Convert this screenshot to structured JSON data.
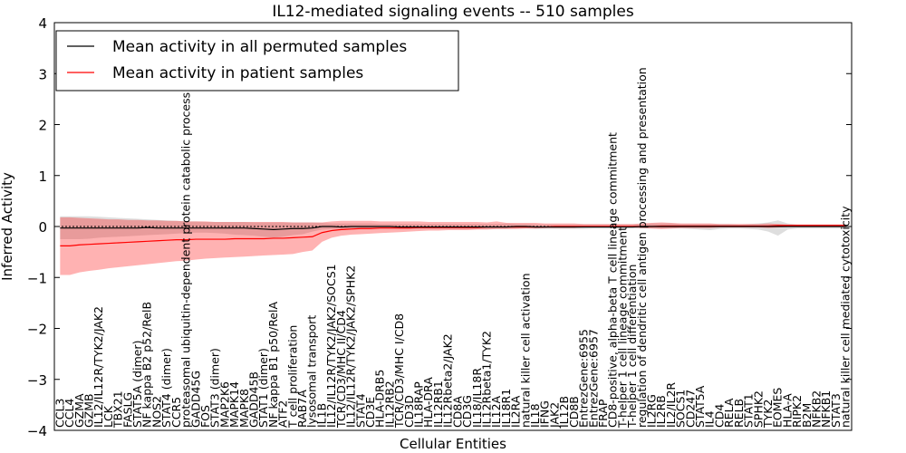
{
  "chart_data": {
    "type": "line",
    "title": "IL12-mediated signaling events -- 510 samples",
    "xlabel": "Cellular Entities",
    "ylabel": "Inferred Activity",
    "ylim": [
      -4,
      4
    ],
    "yticks": [
      -4,
      -3,
      -2,
      -1,
      0,
      1,
      2,
      3,
      4
    ],
    "grid": false,
    "legend_position": "top-left",
    "categories": [
      "CCL3",
      "CCL4",
      "GZMA",
      "GZMB",
      "IL12/IL12R/TYK2/JAK2",
      "LCK",
      "TBX21",
      "FASLG",
      "STAT5A (dimer)",
      "NF kappa B2 p52/RelB",
      "NOS2",
      "STAT4 (dimer)",
      "CCR5",
      "proteasomal ubiquitin-dependent protein catabolic process",
      "GADD45G",
      "FOS",
      "STAT3 (dimer)",
      "MAP2K6",
      "MAPK14",
      "MAPK8",
      "GADD45B",
      "STAT1 (dimer)",
      "NF kappa B1 p50/RelA",
      "ATF2",
      "T cell proliferation",
      "RAB7A",
      "lysosomal transport",
      "IL1B",
      "IL12/IL12R/TYK2/JAK2/SOCS1",
      "TCR/CD3/MHC II/CD4",
      "IL12/IL12R/TYK2/JAK2/SPHK2",
      "STAT4",
      "CD3E",
      "HLA-DRB5",
      "IL12RB2",
      "TCR/CD3/MHC I/CD8",
      "CD3D",
      "IL18RAP",
      "HLA-DRA",
      "IL12RB1",
      "IL12Rbeta2/JAK2",
      "CD8A",
      "CD3G",
      "IL18/IL18R",
      "IL12Rbeta1/TYK2",
      "IL12A",
      "IL18R1",
      "IL2RA",
      "natural killer cell activation",
      "IL18",
      "IFNG",
      "JAK2",
      "IL12B",
      "CD8B",
      "EntrezGene:6955",
      "EntrezGene:6957",
      "FRAP",
      "CD8-positive, alpha-beta T cell lineage commitment",
      "T-helper 1 cell lineage commitment",
      "T-helper 1 cell differentiation",
      "regulation of dendritic cell antigen processing and presentation",
      "IL2RG",
      "IL2RB",
      "IL2/IL2R",
      "SOCS1",
      "CD247",
      "STAT5A",
      "IL4",
      "CD4",
      "RELA",
      "RELB",
      "STAT1",
      "SPHK2",
      "TYK2",
      "EOMES",
      "HLA-A",
      "RIPK2",
      "B2M",
      "NFKB2",
      "NFKB1",
      "STAT3",
      "natural killer cell mediated cytotoxicity"
    ],
    "series": [
      {
        "name": "Mean activity in all permuted samples",
        "color": "#000000",
        "values": [
          -0.03,
          -0.03,
          -0.03,
          -0.03,
          -0.03,
          -0.03,
          -0.03,
          -0.03,
          -0.03,
          -0.02,
          -0.03,
          -0.03,
          -0.03,
          -0.03,
          -0.03,
          -0.03,
          -0.03,
          -0.03,
          -0.03,
          -0.03,
          -0.04,
          -0.05,
          -0.06,
          -0.05,
          -0.04,
          -0.04,
          -0.03,
          0.0,
          0.0,
          -0.01,
          0.0,
          0.0,
          0.0,
          0.0,
          0.0,
          -0.01,
          -0.01,
          -0.01,
          -0.01,
          -0.01,
          -0.01,
          -0.01,
          -0.01,
          -0.01,
          -0.01,
          -0.01,
          -0.01,
          0.0,
          0.0,
          -0.01,
          -0.01,
          -0.01,
          -0.01,
          -0.01,
          -0.01,
          -0.01,
          -0.01,
          -0.01,
          -0.01,
          -0.01,
          0.0,
          0.0,
          0.0,
          0.0,
          0.0,
          0.0,
          0.0,
          0.0,
          0.0,
          0.0,
          0.0,
          0.0,
          0.0,
          0.0,
          0.0,
          0.0,
          0.0,
          0.0,
          0.0,
          0.0,
          0.0,
          0.0
        ],
        "lower": [
          -0.25,
          -0.25,
          -0.25,
          -0.24,
          -0.22,
          -0.21,
          -0.2,
          -0.19,
          -0.18,
          -0.17,
          -0.16,
          -0.15,
          -0.14,
          -0.13,
          -0.12,
          -0.12,
          -0.13,
          -0.14,
          -0.16,
          -0.17,
          -0.18,
          -0.2,
          -0.22,
          -0.2,
          -0.17,
          -0.15,
          -0.1,
          -0.06,
          -0.05,
          -0.05,
          -0.05,
          -0.05,
          -0.04,
          -0.04,
          -0.04,
          -0.05,
          -0.05,
          -0.05,
          -0.05,
          -0.05,
          -0.05,
          -0.05,
          -0.05,
          -0.05,
          -0.05,
          -0.05,
          -0.05,
          -0.04,
          -0.04,
          -0.05,
          -0.05,
          -0.05,
          -0.05,
          -0.05,
          -0.05,
          -0.04,
          -0.04,
          -0.04,
          -0.04,
          -0.04,
          -0.04,
          -0.04,
          -0.04,
          -0.04,
          -0.04,
          -0.05,
          -0.06,
          -0.07,
          -0.05,
          -0.04,
          -0.04,
          -0.05,
          -0.06,
          -0.1,
          -0.18,
          -0.06,
          -0.04,
          -0.04,
          -0.04,
          -0.04,
          -0.04,
          -0.04
        ],
        "upper": [
          0.2,
          0.2,
          0.2,
          0.2,
          0.19,
          0.18,
          0.17,
          0.16,
          0.15,
          0.14,
          0.13,
          0.12,
          0.11,
          0.1,
          0.1,
          0.09,
          0.09,
          0.09,
          0.09,
          0.09,
          0.08,
          0.08,
          0.08,
          0.08,
          0.08,
          0.08,
          0.08,
          0.07,
          0.06,
          0.06,
          0.06,
          0.06,
          0.06,
          0.05,
          0.05,
          0.05,
          0.05,
          0.05,
          0.05,
          0.05,
          0.05,
          0.05,
          0.05,
          0.05,
          0.05,
          0.05,
          0.06,
          0.05,
          0.05,
          0.04,
          0.04,
          0.04,
          0.04,
          0.04,
          0.04,
          0.04,
          0.04,
          0.04,
          0.04,
          0.04,
          0.05,
          0.06,
          0.06,
          0.06,
          0.05,
          0.05,
          0.05,
          0.05,
          0.05,
          0.05,
          0.04,
          0.05,
          0.06,
          0.08,
          0.12,
          0.06,
          0.04,
          0.04,
          0.04,
          0.04,
          0.04,
          0.04
        ]
      },
      {
        "name": "Mean activity in patient samples",
        "color": "#ff0000",
        "values": [
          -0.38,
          -0.38,
          -0.36,
          -0.35,
          -0.34,
          -0.33,
          -0.32,
          -0.31,
          -0.3,
          -0.29,
          -0.28,
          -0.27,
          -0.26,
          -0.26,
          -0.25,
          -0.25,
          -0.25,
          -0.25,
          -0.24,
          -0.24,
          -0.24,
          -0.24,
          -0.23,
          -0.23,
          -0.22,
          -0.21,
          -0.2,
          -0.12,
          -0.08,
          -0.06,
          -0.05,
          -0.04,
          -0.04,
          -0.03,
          -0.03,
          -0.03,
          -0.03,
          -0.02,
          -0.02,
          -0.02,
          -0.02,
          -0.02,
          -0.02,
          -0.02,
          -0.01,
          -0.01,
          -0.01,
          -0.01,
          -0.01,
          -0.01,
          -0.01,
          0.0,
          0.0,
          0.0,
          0.0,
          0.0,
          0.0,
          0.0,
          0.0,
          0.0,
          0.0,
          0.0,
          0.01,
          0.01,
          0.01,
          0.01,
          0.01,
          0.01,
          0.01,
          0.01,
          0.01,
          0.01,
          0.01,
          0.01,
          0.02,
          0.02,
          0.02,
          0.02,
          0.02,
          0.02,
          0.02,
          0.02
        ],
        "lower": [
          -0.95,
          -0.95,
          -0.9,
          -0.87,
          -0.85,
          -0.82,
          -0.8,
          -0.78,
          -0.76,
          -0.74,
          -0.72,
          -0.7,
          -0.68,
          -0.67,
          -0.65,
          -0.63,
          -0.62,
          -0.61,
          -0.6,
          -0.59,
          -0.58,
          -0.57,
          -0.56,
          -0.55,
          -0.54,
          -0.5,
          -0.47,
          -0.3,
          -0.22,
          -0.18,
          -0.16,
          -0.15,
          -0.14,
          -0.13,
          -0.12,
          -0.11,
          -0.1,
          -0.09,
          -0.08,
          -0.08,
          -0.07,
          -0.07,
          -0.07,
          -0.06,
          -0.06,
          -0.05,
          -0.05,
          -0.05,
          -0.04,
          -0.04,
          -0.03,
          -0.03,
          -0.03,
          -0.03,
          -0.02,
          -0.02,
          -0.02,
          -0.02,
          -0.02,
          -0.02,
          -0.03,
          -0.04,
          -0.05,
          -0.04,
          -0.03,
          -0.03,
          -0.03,
          -0.03,
          -0.02,
          -0.02,
          -0.02,
          -0.02,
          -0.02,
          -0.03,
          -0.02,
          -0.01,
          -0.01,
          -0.01,
          0.0,
          0.0,
          0.0,
          0.0
        ],
        "upper": [
          0.18,
          0.18,
          0.17,
          0.16,
          0.15,
          0.14,
          0.14,
          0.13,
          0.13,
          0.12,
          0.12,
          0.11,
          0.11,
          0.1,
          0.1,
          0.1,
          0.09,
          0.09,
          0.09,
          0.09,
          0.09,
          0.09,
          0.09,
          0.09,
          0.08,
          0.08,
          0.08,
          0.08,
          0.1,
          0.11,
          0.11,
          0.11,
          0.11,
          0.1,
          0.1,
          0.1,
          0.1,
          0.1,
          0.09,
          0.09,
          0.09,
          0.09,
          0.09,
          0.09,
          0.08,
          0.1,
          0.07,
          0.07,
          0.07,
          0.07,
          0.06,
          0.06,
          0.06,
          0.06,
          0.05,
          0.05,
          0.05,
          0.05,
          0.05,
          0.05,
          0.06,
          0.07,
          0.08,
          0.07,
          0.06,
          0.06,
          0.06,
          0.06,
          0.05,
          0.05,
          0.05,
          0.05,
          0.05,
          0.06,
          0.05,
          0.04,
          0.04,
          0.04,
          0.04,
          0.04,
          0.04,
          0.04
        ]
      }
    ]
  }
}
